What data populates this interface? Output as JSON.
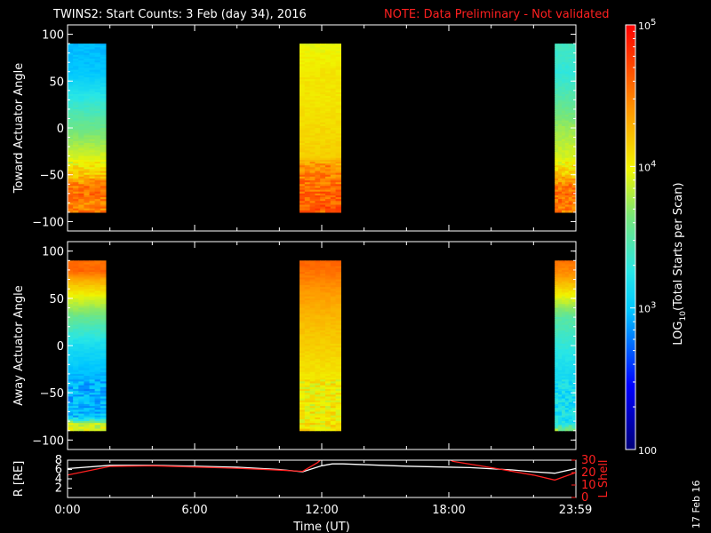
{
  "title": {
    "main": "TWINS2: Start Counts:  3 Feb (day  34), 2016",
    "note": "NOTE: Data Preliminary - Not validated",
    "note_color": "#ff2020"
  },
  "stamp": "17 Feb 16",
  "chart_data": [
    {
      "type": "heatmap",
      "name": "toward",
      "ylabel": "Toward Actuator Angle",
      "ylim": [
        -110,
        110
      ],
      "yticks": [
        100,
        50,
        0,
        -50,
        -100
      ],
      "xlim": [
        0,
        24
      ],
      "blocks": [
        {
          "t0": 0.0,
          "t1": 1.8,
          "profile": [
            [
              90,
              2.95
            ],
            [
              60,
              3.0
            ],
            [
              30,
              3.3
            ],
            [
              0,
              3.6
            ],
            [
              -30,
              3.9
            ],
            [
              -50,
              4.2
            ],
            [
              -60,
              4.5
            ],
            [
              -70,
              4.55
            ],
            [
              -80,
              4.45
            ],
            [
              -90,
              4.5
            ]
          ]
        },
        {
          "t0": 10.95,
          "t1": 12.9,
          "profile": [
            [
              90,
              3.95
            ],
            [
              60,
              4.05
            ],
            [
              30,
              4.05
            ],
            [
              0,
              4.1
            ],
            [
              -30,
              4.15
            ],
            [
              -40,
              4.45
            ],
            [
              -50,
              4.5
            ],
            [
              -70,
              4.6
            ],
            [
              -90,
              4.65
            ]
          ]
        },
        {
          "t0": 23.0,
          "t1": 23.98,
          "profile": [
            [
              90,
              3.4
            ],
            [
              60,
              3.3
            ],
            [
              30,
              3.5
            ],
            [
              0,
              3.75
            ],
            [
              -30,
              3.9
            ],
            [
              -50,
              4.2
            ],
            [
              -60,
              4.5
            ],
            [
              -75,
              4.55
            ],
            [
              -90,
              4.5
            ]
          ]
        }
      ]
    },
    {
      "type": "heatmap",
      "name": "away",
      "ylabel": "Away Actuator Angle",
      "ylim": [
        -110,
        110
      ],
      "yticks": [
        100,
        50,
        0,
        -50,
        -100
      ],
      "xlim": [
        0,
        24
      ],
      "blocks": [
        {
          "t0": 0.0,
          "t1": 1.8,
          "profile": [
            [
              90,
              4.55
            ],
            [
              80,
              4.6
            ],
            [
              70,
              4.3
            ],
            [
              50,
              3.9
            ],
            [
              30,
              3.55
            ],
            [
              0,
              3.15
            ],
            [
              -30,
              2.95
            ],
            [
              -60,
              2.95
            ],
            [
              -75,
              3.0
            ],
            [
              -82,
              3.85
            ],
            [
              -90,
              3.9
            ]
          ]
        },
        {
          "t0": 10.95,
          "t1": 12.9,
          "profile": [
            [
              90,
              4.6
            ],
            [
              80,
              4.55
            ],
            [
              60,
              4.4
            ],
            [
              30,
              4.25
            ],
            [
              0,
              4.15
            ],
            [
              -30,
              4.05
            ],
            [
              -60,
              4.0
            ],
            [
              -75,
              4.05
            ],
            [
              -90,
              4.05
            ]
          ]
        },
        {
          "t0": 23.0,
          "t1": 23.98,
          "profile": [
            [
              90,
              4.55
            ],
            [
              75,
              4.4
            ],
            [
              50,
              3.9
            ],
            [
              30,
              3.5
            ],
            [
              0,
              3.3
            ],
            [
              -30,
              3.15
            ],
            [
              -60,
              3.15
            ],
            [
              -80,
              3.2
            ],
            [
              -90,
              3.8
            ]
          ]
        }
      ]
    },
    {
      "type": "line",
      "name": "orbit",
      "ylabel": "R [RE]",
      "y2label": "L Shell",
      "ylim": [
        0,
        8
      ],
      "y2lim": [
        0,
        30
      ],
      "yticks": [
        2,
        4,
        6,
        8
      ],
      "y2ticks": [
        0,
        10,
        20,
        30
      ],
      "xlabel": "Time (UT)",
      "xticks": [
        {
          "t": 0,
          "label": "0:00"
        },
        {
          "t": 6,
          "label": "6:00"
        },
        {
          "t": 12,
          "label": "12:00"
        },
        {
          "t": 18,
          "label": "18:00"
        },
        {
          "t": 23.98,
          "label": "23:59"
        }
      ],
      "series": [
        {
          "color": "#ffffff",
          "axis": "R",
          "x": [
            0,
            2,
            4,
            6,
            8,
            10,
            11.1,
            12.0,
            12.5,
            13,
            16,
            19,
            21,
            22,
            23,
            23.98
          ],
          "y": [
            6.2,
            6.9,
            6.9,
            6.7,
            6.5,
            6.0,
            5.5,
            6.8,
            7.2,
            7.2,
            6.7,
            6.4,
            5.9,
            5.5,
            5.2,
            6.2
          ]
        },
        {
          "color": "#ff2020",
          "axis": "L",
          "x": [
            0,
            2,
            4,
            6,
            8,
            10,
            11.1,
            11.8,
            12.0
          ],
          "y": [
            18,
            25,
            25.5,
            24.5,
            23.5,
            22,
            21,
            28,
            31
          ]
        },
        {
          "color": "#ff2020",
          "axis": "L",
          "x": [
            17.95,
            18.2,
            20,
            22,
            23,
            23.98
          ],
          "y": [
            31,
            29,
            24,
            18,
            14,
            20
          ]
        }
      ]
    }
  ],
  "colorbar": {
    "label": "LOG10(Total Starts per Scan)",
    "label_main": "LOG",
    "label_sub": "10",
    "label_rest": "(Total Starts per Scan)",
    "ticks": [
      {
        "v": 5,
        "text": "10",
        "sup": "5"
      },
      {
        "v": 4,
        "text": "10",
        "sup": "4"
      },
      {
        "v": 3,
        "text": "10",
        "sup": "3"
      },
      {
        "v": 2,
        "text": "100",
        "sup": ""
      }
    ],
    "min": 2,
    "max": 5
  }
}
